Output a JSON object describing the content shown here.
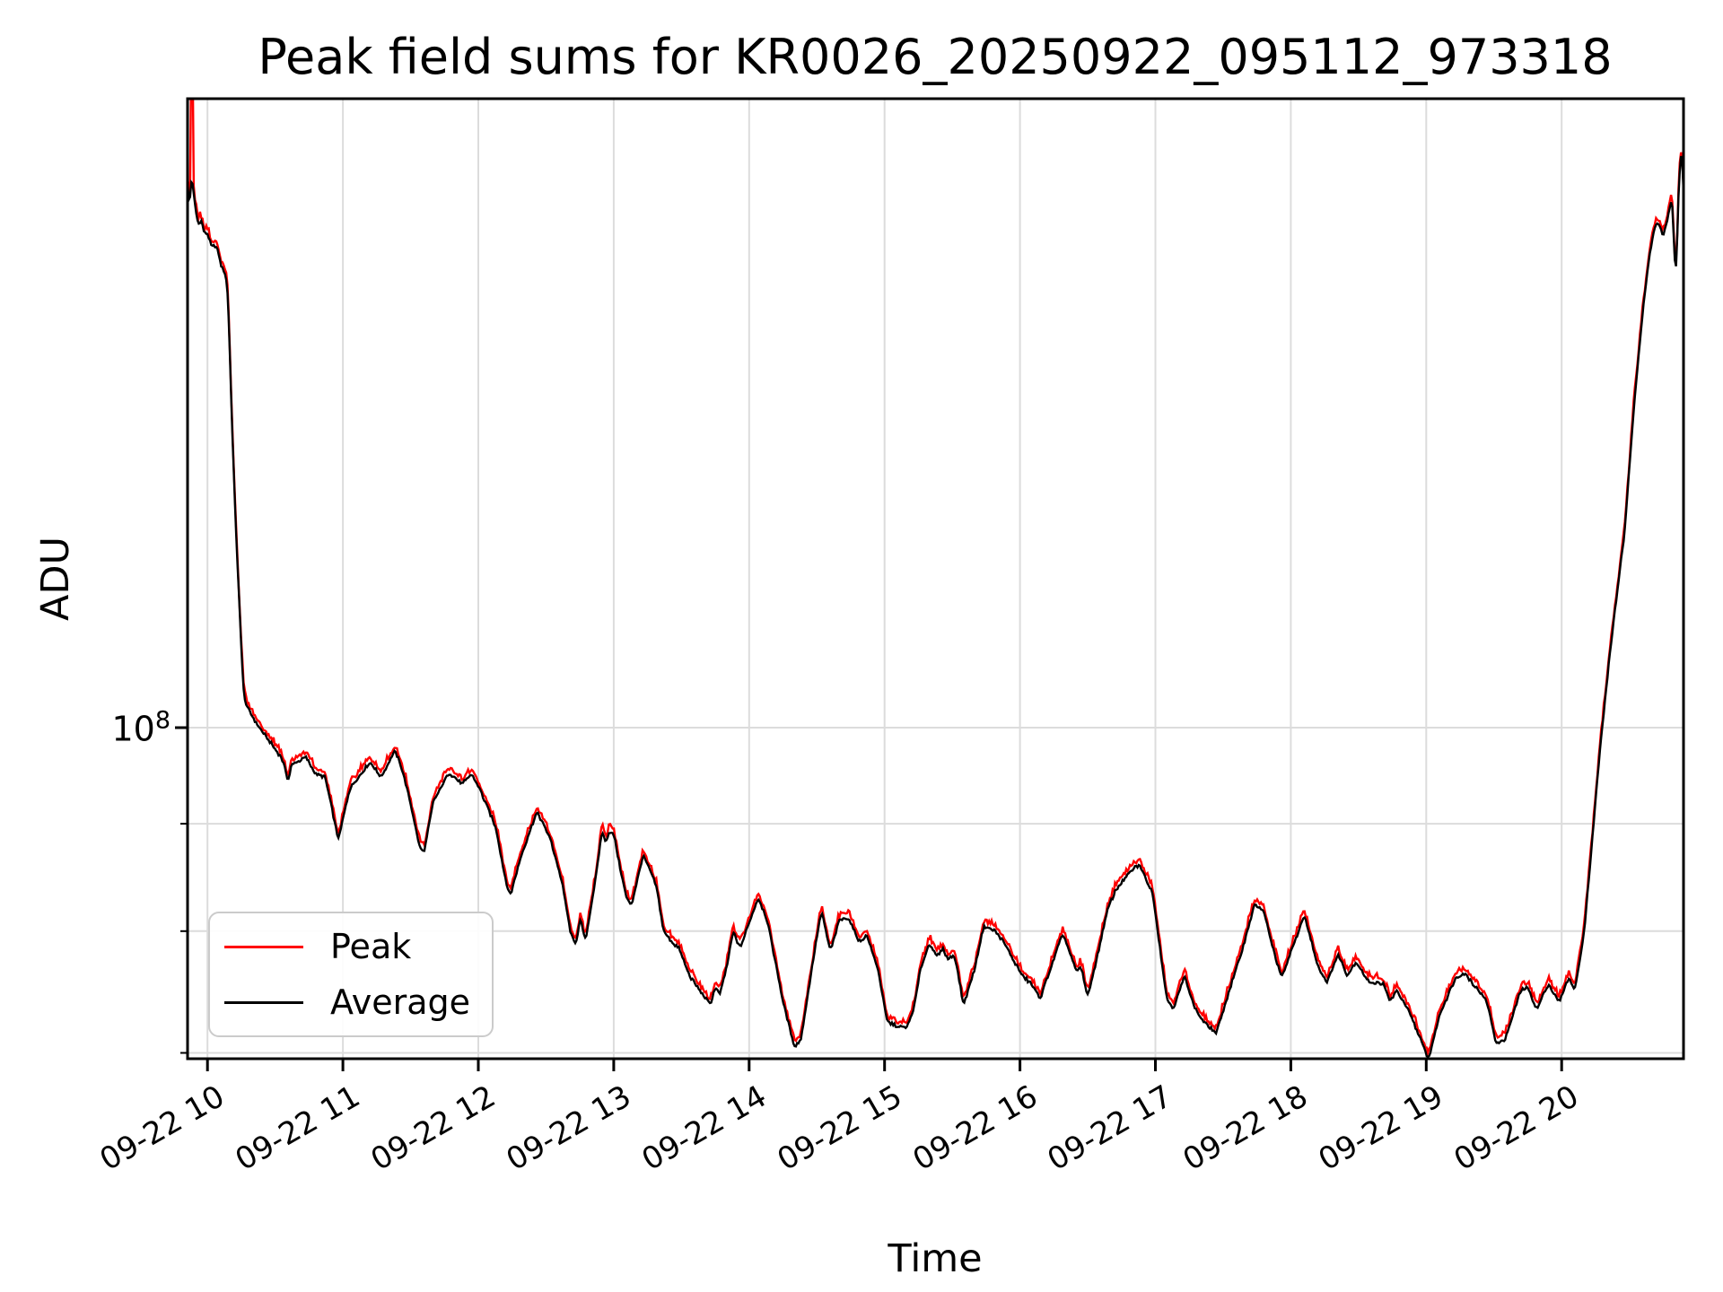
{
  "figure": {
    "title": "Peak field sums for KR0026_20250922_095112_973318",
    "xlabel": "Time",
    "ylabel": "ADU",
    "background": "#ffffff"
  },
  "axes": {
    "y_tick_base": "10",
    "y_tick_exp": "8",
    "grid_color": "#dcdcdc",
    "spine_color": "#000000",
    "x_ticks": [
      {
        "hour": 10,
        "label": "09-22 10"
      },
      {
        "hour": 11,
        "label": "09-22 11"
      },
      {
        "hour": 12,
        "label": "09-22 12"
      },
      {
        "hour": 13,
        "label": "09-22 13"
      },
      {
        "hour": 14,
        "label": "09-22 14"
      },
      {
        "hour": 15,
        "label": "09-22 15"
      },
      {
        "hour": 16,
        "label": "09-22 16"
      },
      {
        "hour": 17,
        "label": "09-22 17"
      },
      {
        "hour": 18,
        "label": "09-22 18"
      },
      {
        "hour": 19,
        "label": "09-22 19"
      },
      {
        "hour": 20,
        "label": "09-22 20"
      }
    ]
  },
  "legend": {
    "entries": [
      {
        "label": "Peak",
        "color": "#ff0000"
      },
      {
        "label": "Average",
        "color": "#000000"
      }
    ]
  },
  "chart_data": {
    "type": "line",
    "title": "Peak field sums for KR0026_20250922_095112_973318",
    "xlabel": "Time",
    "ylabel": "ADU",
    "x_axis": {
      "kind": "datetime",
      "date": "2025-09-22",
      "start_hour": 9.853,
      "end_hour": 20.9,
      "tick_hours": [
        10,
        11,
        12,
        13,
        14,
        15,
        16,
        17,
        18,
        19,
        20
      ],
      "tick_labels": [
        "09-22 10",
        "09-22 11",
        "09-22 12",
        "09-22 13",
        "09-22 14",
        "09-22 15",
        "09-22 16",
        "09-22 17",
        "09-22 18",
        "09-22 19",
        "09-22 20"
      ]
    },
    "y_axis": {
      "scale": "log",
      "unit": "ADU",
      "labeled_tick": 100000000.0,
      "minor_gridline_values": [
        90000000.0,
        80000000.0,
        70000000.0
      ],
      "ylim": [
        69500000.0,
        199000000.0
      ],
      "grid": true
    },
    "legend_position": "lower left",
    "series": [
      {
        "name": "Peak",
        "color": "#ff0000",
        "relation": "approximately Average times ratio, slightly noisier",
        "ratio_over_average": 1.005,
        "clipped_spike": {
          "hour": 9.883,
          "value": 210000000.0
        }
      },
      {
        "name": "Average",
        "color": "#000000",
        "points": [
          [
            9.853,
            182000000.0
          ],
          [
            9.868,
            174000000.0
          ],
          [
            9.873,
            179000000.0
          ],
          [
            9.883,
            186000000.0
          ],
          [
            9.893,
            180000000.0
          ],
          [
            9.917,
            176000000.0
          ],
          [
            9.933,
            173000000.0
          ],
          [
            9.95,
            175000000.0
          ],
          [
            9.975,
            172000000.0
          ],
          [
            10.0,
            172000000.0
          ],
          [
            10.033,
            169000000.0
          ],
          [
            10.05,
            170000000.0
          ],
          [
            10.075,
            169000000.0
          ],
          [
            10.1,
            166000000.0
          ],
          [
            10.125,
            165000000.0
          ],
          [
            10.15,
            162000000.0
          ],
          [
            10.183,
            138000000.0
          ],
          [
            10.217,
            121000000.0
          ],
          [
            10.267,
            103500000.0
          ],
          [
            10.3,
            102000000.0
          ],
          [
            10.383,
            100000000.0
          ],
          [
            10.433,
            99000000.0
          ],
          [
            10.55,
            96700000.0
          ],
          [
            10.6,
            94200000.0
          ],
          [
            10.617,
            96000000.0
          ],
          [
            10.73,
            96800000.0
          ],
          [
            10.8,
            95000000.0
          ],
          [
            10.867,
            94800000.0
          ],
          [
            10.967,
            88400000.0
          ],
          [
            11.05,
            93500000.0
          ],
          [
            11.2,
            96300000.0
          ],
          [
            11.283,
            94700000.0
          ],
          [
            11.383,
            97500000.0
          ],
          [
            11.433,
            95800000.0
          ],
          [
            11.497,
            92200000.0
          ],
          [
            11.567,
            87700000.0
          ],
          [
            11.6,
            87200000.0
          ],
          [
            11.667,
            92200000.0
          ],
          [
            11.7,
            93000000.0
          ],
          [
            11.783,
            95200000.0
          ],
          [
            11.883,
            94000000.0
          ],
          [
            11.95,
            95100000.0
          ],
          [
            12.017,
            93300000.0
          ],
          [
            12.05,
            92200000.0
          ],
          [
            12.133,
            89500000.0
          ],
          [
            12.183,
            85800000.0
          ],
          [
            12.233,
            83000000.0
          ],
          [
            12.317,
            86900000.0
          ],
          [
            12.433,
            91200000.0
          ],
          [
            12.533,
            88500000.0
          ],
          [
            12.617,
            84500000.0
          ],
          [
            12.683,
            79700000.0
          ],
          [
            12.72,
            78800000.0
          ],
          [
            12.755,
            81200000.0
          ],
          [
            12.79,
            79000000.0
          ],
          [
            12.87,
            85000000.0
          ],
          [
            12.917,
            89600000.0
          ],
          [
            12.933,
            88000000.0
          ],
          [
            12.967,
            89200000.0
          ],
          [
            13.0,
            89000000.0
          ],
          [
            13.05,
            85500000.0
          ],
          [
            13.1,
            82700000.0
          ],
          [
            13.133,
            82300000.0
          ],
          [
            13.217,
            87000000.0
          ],
          [
            13.317,
            84000000.0
          ],
          [
            13.367,
            80000000.0
          ],
          [
            13.433,
            79000000.0
          ],
          [
            13.483,
            78500000.0
          ],
          [
            13.55,
            76400000.0
          ],
          [
            13.6,
            75500000.0
          ],
          [
            13.683,
            74200000.0
          ],
          [
            13.717,
            73800000.0
          ],
          [
            13.75,
            75300000.0
          ],
          [
            13.783,
            74600000.0
          ],
          [
            13.833,
            76800000.0
          ],
          [
            13.883,
            80000000.0
          ],
          [
            13.933,
            78500000.0
          ],
          [
            14.067,
            83000000.0
          ],
          [
            14.133,
            81000000.0
          ],
          [
            14.25,
            74000000.0
          ],
          [
            14.333,
            70500000.0
          ],
          [
            14.383,
            71000000.0
          ],
          [
            14.533,
            81800000.0
          ],
          [
            14.6,
            78200000.0
          ],
          [
            14.667,
            81000000.0
          ],
          [
            14.733,
            81200000.0
          ],
          [
            14.817,
            79000000.0
          ],
          [
            14.867,
            79700000.0
          ],
          [
            14.95,
            76800000.0
          ],
          [
            15.017,
            72500000.0
          ],
          [
            15.1,
            72000000.0
          ],
          [
            15.167,
            72000000.0
          ],
          [
            15.217,
            73500000.0
          ],
          [
            15.267,
            76800000.0
          ],
          [
            15.333,
            79000000.0
          ],
          [
            15.383,
            77800000.0
          ],
          [
            15.433,
            78500000.0
          ],
          [
            15.467,
            77500000.0
          ],
          [
            15.517,
            78000000.0
          ],
          [
            15.583,
            73700000.0
          ],
          [
            15.667,
            76800000.0
          ],
          [
            15.733,
            80500000.0
          ],
          [
            15.817,
            80000000.0
          ],
          [
            15.883,
            79000000.0
          ],
          [
            15.95,
            77500000.0
          ],
          [
            16.017,
            76200000.0
          ],
          [
            16.083,
            75500000.0
          ],
          [
            16.15,
            74300000.0
          ],
          [
            16.317,
            79800000.0
          ],
          [
            16.417,
            76500000.0
          ],
          [
            16.45,
            77000000.0
          ],
          [
            16.5,
            74400000.0
          ],
          [
            16.567,
            77600000.0
          ],
          [
            16.65,
            82000000.0
          ],
          [
            16.7,
            83500000.0
          ],
          [
            16.75,
            84400000.0
          ],
          [
            16.85,
            85800000.0
          ],
          [
            16.883,
            86000000.0
          ],
          [
            16.983,
            83300000.0
          ],
          [
            17.017,
            80000000.0
          ],
          [
            17.083,
            74300000.0
          ],
          [
            17.133,
            73500000.0
          ],
          [
            17.217,
            76200000.0
          ],
          [
            17.283,
            73700000.0
          ],
          [
            17.35,
            72500000.0
          ],
          [
            17.45,
            71500000.0
          ],
          [
            17.533,
            74500000.0
          ],
          [
            17.633,
            78000000.0
          ],
          [
            17.733,
            82400000.0
          ],
          [
            17.8,
            81800000.0
          ],
          [
            17.867,
            78500000.0
          ],
          [
            17.933,
            76000000.0
          ],
          [
            18.1,
            81400000.0
          ],
          [
            18.2,
            77000000.0
          ],
          [
            18.267,
            75600000.0
          ],
          [
            18.35,
            78000000.0
          ],
          [
            18.417,
            76200000.0
          ],
          [
            18.483,
            77400000.0
          ],
          [
            18.567,
            75700000.0
          ],
          [
            18.683,
            75500000.0
          ],
          [
            18.733,
            74000000.0
          ],
          [
            18.783,
            75000000.0
          ],
          [
            18.883,
            73000000.0
          ],
          [
            19.017,
            69500000.0
          ],
          [
            19.1,
            73000000.0
          ],
          [
            19.217,
            76000000.0
          ],
          [
            19.283,
            76400000.0
          ],
          [
            19.383,
            75000000.0
          ],
          [
            19.45,
            74000000.0
          ],
          [
            19.517,
            70700000.0
          ],
          [
            19.583,
            71000000.0
          ],
          [
            19.7,
            75000000.0
          ],
          [
            19.75,
            75200000.0
          ],
          [
            19.817,
            73400000.0
          ],
          [
            19.9,
            75500000.0
          ],
          [
            19.983,
            74000000.0
          ],
          [
            20.05,
            76000000.0
          ],
          [
            20.1,
            75000000.0
          ],
          [
            20.167,
            80000000.0
          ],
          [
            20.217,
            87000000.0
          ],
          [
            20.267,
            95000000.0
          ],
          [
            20.3,
            100000000.0
          ],
          [
            20.367,
            110000000.0
          ],
          [
            20.467,
            124000000.0
          ],
          [
            20.533,
            142000000.0
          ],
          [
            20.6,
            158000000.0
          ],
          [
            20.65,
            168000000.0
          ],
          [
            20.683,
            173000000.0
          ],
          [
            20.717,
            174000000.0
          ],
          [
            20.75,
            171000000.0
          ],
          [
            20.783,
            175000000.0
          ],
          [
            20.817,
            179000000.0
          ],
          [
            20.842,
            161000000.0
          ],
          [
            20.867,
            183000000.0
          ],
          [
            20.888,
            190000000.0
          ],
          [
            20.9,
            180000000.0
          ]
        ]
      }
    ]
  }
}
